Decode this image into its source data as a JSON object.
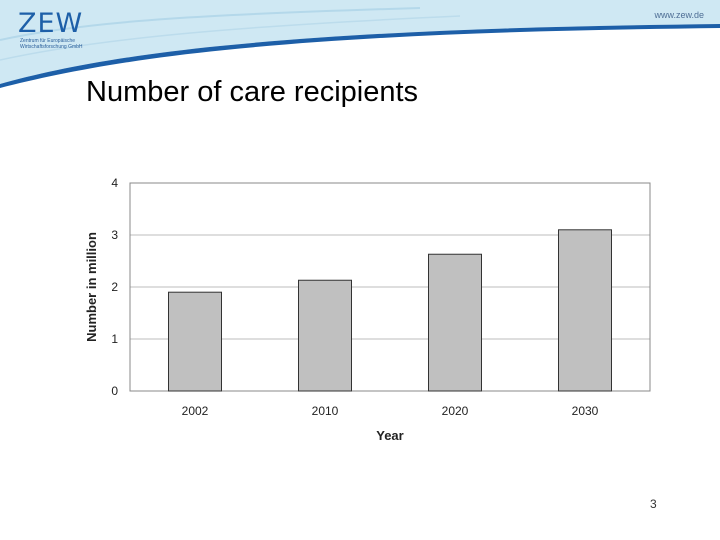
{
  "header": {
    "logo_text": "ZEW",
    "logo_sub_line1": "Zentrum für Europäische",
    "logo_sub_line2": "Wirtschaftsforschung GmbH",
    "url": "www.zew.de",
    "colors": {
      "wave_light": "#cfe8f3",
      "wave_band": "#1d5fa8",
      "logo": "#1d5fa8"
    }
  },
  "slide": {
    "title": "Number of care recipients",
    "page_number": "3"
  },
  "chart_data": {
    "type": "bar",
    "categories": [
      "2002",
      "2010",
      "2020",
      "2030"
    ],
    "values": [
      1.9,
      2.13,
      2.63,
      3.1
    ],
    "xlabel": "Year",
    "ylabel": "Number in million",
    "ylim": [
      0,
      4
    ],
    "yticks": [
      "0",
      "1",
      "2",
      "3",
      "4"
    ],
    "grid": true,
    "bar_color": "#c0c0c0"
  }
}
